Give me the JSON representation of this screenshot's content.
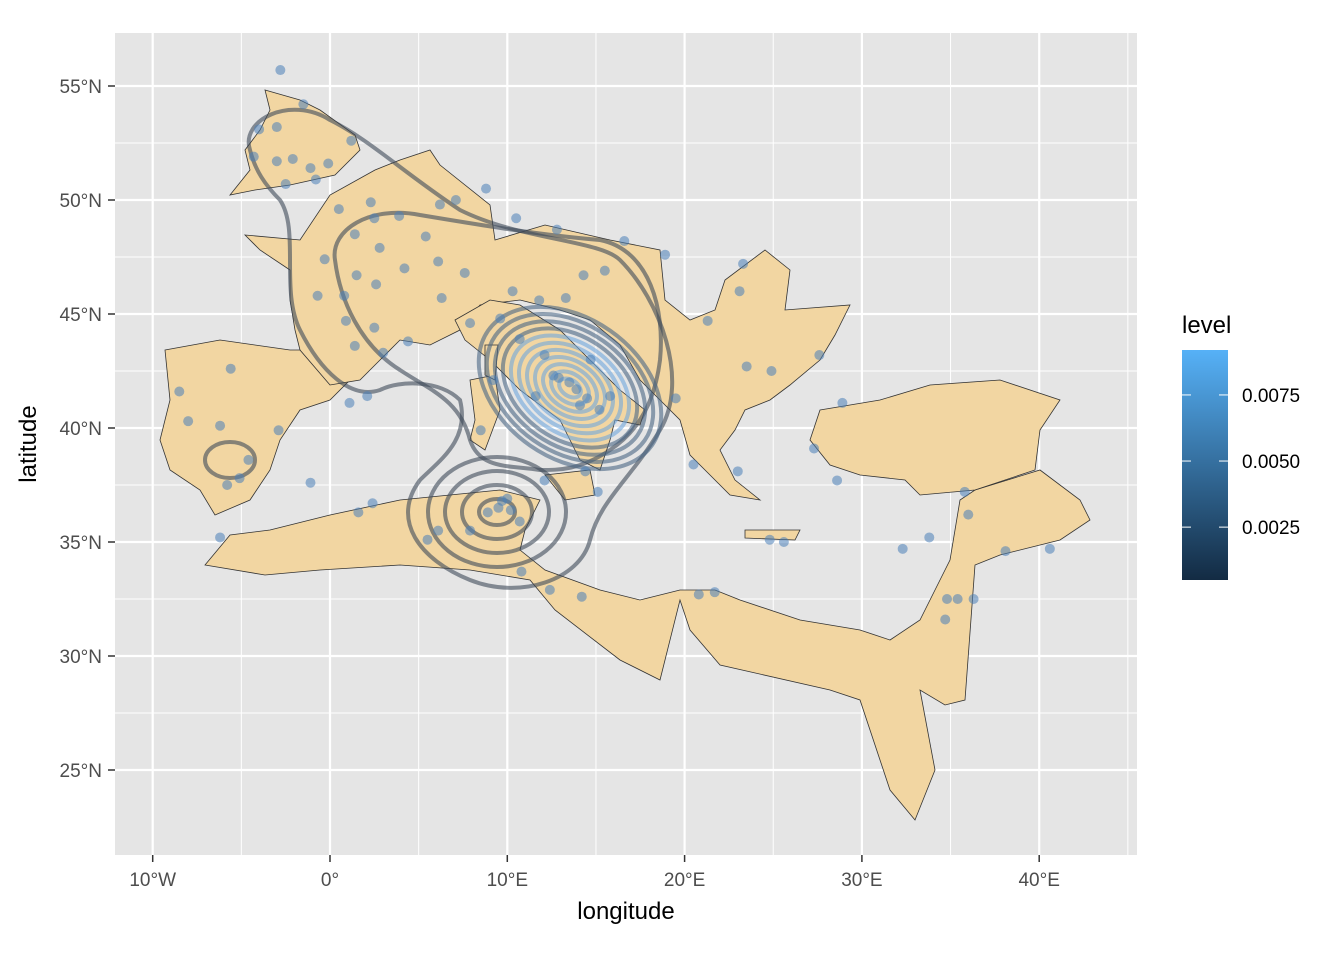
{
  "chart_data": {
    "type": "map",
    "xlabel": "longitude",
    "ylabel": "latitude",
    "x_ticks": [
      {
        "v": -10,
        "label": "10°W"
      },
      {
        "v": 0,
        "label": "0°"
      },
      {
        "v": 10,
        "label": "10°E"
      },
      {
        "v": 20,
        "label": "20°E"
      },
      {
        "v": 30,
        "label": "30°E"
      },
      {
        "v": 40,
        "label": "40°E"
      }
    ],
    "y_ticks": [
      {
        "v": 55,
        "label": "55°N"
      },
      {
        "v": 50,
        "label": "50°N"
      },
      {
        "v": 45,
        "label": "45°N"
      },
      {
        "v": 40,
        "label": "40°N"
      },
      {
        "v": 35,
        "label": "35°N"
      },
      {
        "v": 30,
        "label": "30°N"
      },
      {
        "v": 25,
        "label": "25°N"
      }
    ],
    "xlim": [
      -12,
      45.5
    ],
    "ylim": [
      21.5,
      57
    ],
    "grid": true,
    "land_color": "#f2d6a2",
    "panel_color": "#e5e5e5",
    "point_color": "#4a7fb8",
    "legend": {
      "title": "level",
      "position": "right",
      "color_low": "#132b43",
      "color_high": "#56b1f7",
      "range": [
        0.0005,
        0.0092
      ],
      "breaks": [
        {
          "v": 0.0075,
          "label": "0.0075"
        },
        {
          "v": 0.005,
          "label": "0.0050"
        },
        {
          "v": 0.0025,
          "label": "0.0025"
        }
      ]
    },
    "points": [
      [
        -2.8,
        55.7
      ],
      [
        -1.5,
        54.2
      ],
      [
        -4,
        53.1
      ],
      [
        -3,
        53.2
      ],
      [
        -2.1,
        51.8
      ],
      [
        -3,
        51.7
      ],
      [
        -1.1,
        51.4
      ],
      [
        -0.1,
        51.6
      ],
      [
        -0.8,
        50.9
      ],
      [
        -2.5,
        50.7
      ],
      [
        1.2,
        52.6
      ],
      [
        -4.3,
        51.9
      ],
      [
        0.5,
        49.6
      ],
      [
        2.3,
        49.9
      ],
      [
        2.5,
        49.2
      ],
      [
        3.9,
        49.3
      ],
      [
        1.4,
        48.5
      ],
      [
        2.8,
        47.9
      ],
      [
        5.4,
        48.4
      ],
      [
        6.2,
        49.8
      ],
      [
        -0.3,
        47.4
      ],
      [
        1.5,
        46.7
      ],
      [
        2.6,
        46.3
      ],
      [
        4.2,
        47
      ],
      [
        6.1,
        47.3
      ],
      [
        -0.7,
        45.8
      ],
      [
        0.8,
        45.8
      ],
      [
        0.9,
        44.7
      ],
      [
        2.5,
        44.4
      ],
      [
        1.4,
        43.6
      ],
      [
        3,
        43.3
      ],
      [
        4.4,
        43.8
      ],
      [
        6.3,
        45.7
      ],
      [
        7.6,
        46.8
      ],
      [
        7.1,
        50
      ],
      [
        8.8,
        50.5
      ],
      [
        10.5,
        49.2
      ],
      [
        -5.6,
        42.6
      ],
      [
        -8.5,
        41.6
      ],
      [
        -8,
        40.3
      ],
      [
        -6.2,
        40.1
      ],
      [
        -2.9,
        39.9
      ],
      [
        -4.6,
        38.6
      ],
      [
        -5.1,
        37.8
      ],
      [
        -5.8,
        37.5
      ],
      [
        -6.2,
        35.2
      ],
      [
        -1.1,
        37.6
      ],
      [
        1.1,
        41.1
      ],
      [
        2.1,
        41.4
      ],
      [
        10.3,
        46
      ],
      [
        9.6,
        44.8
      ],
      [
        11.8,
        45.6
      ],
      [
        13.3,
        45.7
      ],
      [
        7.9,
        44.6
      ],
      [
        10.7,
        43.9
      ],
      [
        12.1,
        43.2
      ],
      [
        12.6,
        42.3
      ],
      [
        13.5,
        42
      ],
      [
        14.1,
        41
      ],
      [
        15.2,
        40.8
      ],
      [
        15.8,
        41.4
      ],
      [
        11.6,
        41.4
      ],
      [
        14.7,
        43
      ],
      [
        15.5,
        46.9
      ],
      [
        14.3,
        46.7
      ],
      [
        16.6,
        48.2
      ],
      [
        12.8,
        48.7
      ],
      [
        9.2,
        42.1
      ],
      [
        8.5,
        39.9
      ],
      [
        12.1,
        37.7
      ],
      [
        14.4,
        38.1
      ],
      [
        15.1,
        37.2
      ],
      [
        12.9,
        42.2
      ],
      [
        13.9,
        41.7
      ],
      [
        14.5,
        41.3
      ],
      [
        9.7,
        36.8
      ],
      [
        8.9,
        36.3
      ],
      [
        10.7,
        35.9
      ],
      [
        7.9,
        35.5
      ],
      [
        6.1,
        35.5
      ],
      [
        5.5,
        35.1
      ],
      [
        2.4,
        36.7
      ],
      [
        1.6,
        36.3
      ],
      [
        10.8,
        33.7
      ],
      [
        12.4,
        32.9
      ],
      [
        14.2,
        32.6
      ],
      [
        20.8,
        32.7
      ],
      [
        21.7,
        32.8
      ],
      [
        9.5,
        36.5
      ],
      [
        10.2,
        36.4
      ],
      [
        10.0,
        36.9
      ],
      [
        18.9,
        47.6
      ],
      [
        21.3,
        44.7
      ],
      [
        23.3,
        47.2
      ],
      [
        23.1,
        46
      ],
      [
        23.5,
        42.7
      ],
      [
        24.9,
        42.5
      ],
      [
        27.6,
        43.2
      ],
      [
        27.3,
        39.1
      ],
      [
        23,
        38.1
      ],
      [
        28.6,
        37.7
      ],
      [
        24.8,
        35.1
      ],
      [
        25.6,
        35
      ],
      [
        19.5,
        41.3
      ],
      [
        20.5,
        38.4
      ],
      [
        28.9,
        41.1
      ],
      [
        32.3,
        34.7
      ],
      [
        33.8,
        35.2
      ],
      [
        35.8,
        37.2
      ],
      [
        36,
        36.2
      ],
      [
        34.8,
        32.5
      ],
      [
        35.4,
        32.5
      ],
      [
        36.3,
        32.5
      ],
      [
        34.7,
        31.6
      ],
      [
        38.1,
        34.6
      ],
      [
        40.6,
        34.7
      ]
    ]
  }
}
